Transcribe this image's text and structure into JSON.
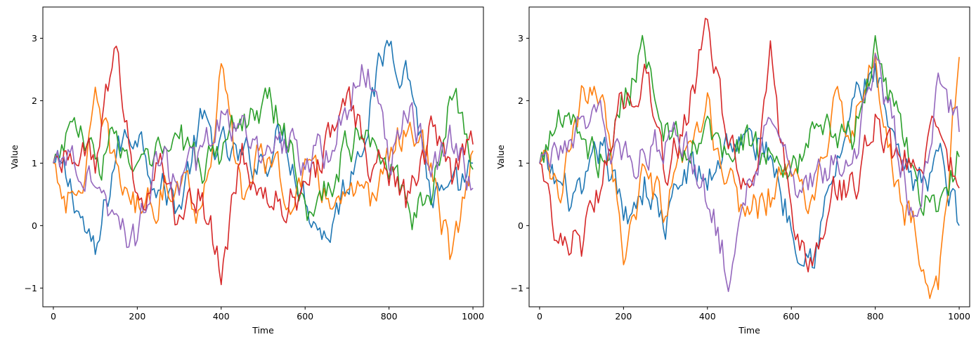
{
  "chart_data": [
    {
      "type": "line",
      "title": "",
      "xlabel": "Time",
      "ylabel": "Value",
      "xlim": [
        -25,
        1025
      ],
      "ylim": [
        -1.3,
        3.5
      ],
      "xticks": [
        0,
        200,
        400,
        600,
        800,
        1000
      ],
      "yticks": [
        -1,
        0,
        1,
        2,
        3
      ],
      "ytick_labels": [
        "−1",
        "0",
        "1",
        "2",
        "3"
      ],
      "grid": false,
      "series": [
        {
          "color": "#1f77b4",
          "x": [
            0,
            50,
            100,
            150,
            200,
            250,
            300,
            350,
            400,
            450,
            500,
            550,
            600,
            650,
            700,
            750,
            800,
            850,
            900,
            950,
            1000
          ],
          "values": [
            1.0,
            0.5,
            -0.6,
            1.2,
            1.6,
            0.7,
            0.3,
            1.6,
            1.2,
            1.0,
            1.1,
            1.5,
            0.5,
            -0.2,
            0.7,
            1.8,
            3.0,
            2.4,
            0.5,
            0.3,
            1.0
          ]
        },
        {
          "color": "#ff7f0e",
          "x": [
            0,
            50,
            100,
            150,
            200,
            250,
            300,
            350,
            400,
            450,
            500,
            550,
            600,
            650,
            700,
            750,
            800,
            850,
            900,
            950,
            1000
          ],
          "values": [
            1.0,
            0.2,
            1.8,
            0.9,
            0.3,
            0.5,
            0.9,
            0.2,
            2.4,
            0.4,
            1.3,
            0.5,
            0.8,
            0.5,
            0.4,
            0.3,
            1.1,
            1.7,
            0.9,
            -0.7,
            1.2
          ]
        },
        {
          "color": "#2ca02c",
          "x": [
            0,
            50,
            100,
            150,
            200,
            250,
            300,
            350,
            400,
            450,
            500,
            550,
            600,
            650,
            700,
            750,
            800,
            850,
            900,
            950,
            1000
          ],
          "values": [
            1.0,
            1.7,
            0.9,
            1.5,
            0.7,
            1.1,
            1.4,
            0.9,
            1.2,
            1.7,
            2.0,
            1.6,
            0.2,
            0.6,
            1.3,
            1.6,
            1.1,
            0.0,
            0.4,
            2.3,
            0.9
          ]
        },
        {
          "color": "#d62728",
          "x": [
            0,
            50,
            100,
            150,
            200,
            250,
            300,
            350,
            400,
            450,
            500,
            550,
            600,
            650,
            700,
            750,
            800,
            850,
            900,
            950,
            1000
          ],
          "values": [
            1.0,
            1.3,
            1.1,
            2.7,
            0.4,
            1.0,
            0.1,
            0.6,
            -0.7,
            1.0,
            0.5,
            0.3,
            0.7,
            1.2,
            2.1,
            1.1,
            0.9,
            0.3,
            1.5,
            0.8,
            1.3
          ]
        },
        {
          "color": "#9467bd",
          "x": [
            0,
            50,
            100,
            150,
            200,
            250,
            300,
            350,
            400,
            450,
            500,
            550,
            600,
            650,
            700,
            750,
            800,
            850,
            900,
            950,
            1000
          ],
          "values": [
            1.0,
            1.2,
            0.6,
            0.2,
            -0.3,
            1.1,
            0.7,
            1.0,
            1.6,
            1.7,
            0.8,
            1.3,
            1.1,
            1.2,
            1.9,
            2.6,
            1.1,
            1.8,
            1.0,
            1.3,
            0.6
          ]
        }
      ]
    },
    {
      "type": "line",
      "title": "",
      "xlabel": "Time",
      "ylabel": "Value",
      "xlim": [
        -25,
        1025
      ],
      "ylim": [
        -1.3,
        3.5
      ],
      "xticks": [
        0,
        200,
        400,
        600,
        800,
        1000
      ],
      "yticks": [
        -1,
        0,
        1,
        2,
        3
      ],
      "ytick_labels": [
        "−1",
        "0",
        "1",
        "2",
        "3"
      ],
      "grid": false,
      "series": [
        {
          "color": "#1f77b4",
          "x": [
            0,
            50,
            100,
            150,
            200,
            250,
            300,
            350,
            400,
            450,
            500,
            550,
            600,
            650,
            700,
            750,
            800,
            850,
            900,
            950,
            1000
          ],
          "values": [
            1.0,
            0.6,
            0.3,
            1.3,
            0.1,
            0.7,
            0.0,
            0.9,
            0.7,
            1.4,
            1.3,
            1.2,
            0.0,
            -0.4,
            0.7,
            2.0,
            2.4,
            1.0,
            0.5,
            1.2,
            0.0
          ]
        },
        {
          "color": "#ff7f0e",
          "x": [
            0,
            50,
            100,
            150,
            200,
            250,
            300,
            350,
            400,
            450,
            500,
            550,
            600,
            650,
            700,
            750,
            800,
            850,
            900,
            950,
            1000
          ],
          "values": [
            1.0,
            0.5,
            1.9,
            2.3,
            -0.4,
            0.7,
            0.2,
            1.0,
            1.8,
            0.6,
            0.2,
            0.5,
            0.9,
            0.3,
            1.7,
            1.8,
            2.5,
            0.7,
            -0.2,
            -1.1,
            2.7
          ]
        },
        {
          "color": "#2ca02c",
          "x": [
            0,
            50,
            100,
            150,
            200,
            250,
            300,
            350,
            400,
            450,
            500,
            550,
            600,
            650,
            700,
            750,
            800,
            850,
            900,
            950,
            1000
          ],
          "values": [
            1.0,
            1.8,
            1.3,
            1.1,
            2.0,
            2.9,
            1.5,
            1.0,
            1.5,
            1.0,
            1.4,
            1.1,
            0.7,
            1.5,
            1.5,
            1.3,
            2.8,
            1.8,
            0.5,
            0.3,
            1.1
          ]
        },
        {
          "color": "#d62728",
          "x": [
            0,
            50,
            100,
            150,
            200,
            250,
            300,
            350,
            400,
            450,
            500,
            550,
            600,
            650,
            700,
            750,
            800,
            850,
            900,
            950,
            1000
          ],
          "values": [
            1.0,
            -0.2,
            -0.3,
            0.8,
            2.0,
            2.5,
            0.8,
            1.7,
            3.1,
            1.3,
            0.4,
            2.6,
            0.1,
            -0.7,
            0.6,
            0.5,
            1.8,
            1.0,
            1.2,
            1.5,
            0.6
          ]
        },
        {
          "color": "#9467bd",
          "x": [
            0,
            50,
            100,
            150,
            200,
            250,
            300,
            350,
            400,
            450,
            500,
            550,
            600,
            650,
            700,
            750,
            800,
            850,
            900,
            950,
            1000
          ],
          "values": [
            1.0,
            1.4,
            1.7,
            1.5,
            1.0,
            1.2,
            1.4,
            1.2,
            0.5,
            -0.8,
            0.8,
            1.6,
            0.8,
            0.6,
            1.0,
            1.0,
            2.7,
            1.3,
            0.1,
            2.4,
            1.5
          ]
        }
      ]
    }
  ]
}
